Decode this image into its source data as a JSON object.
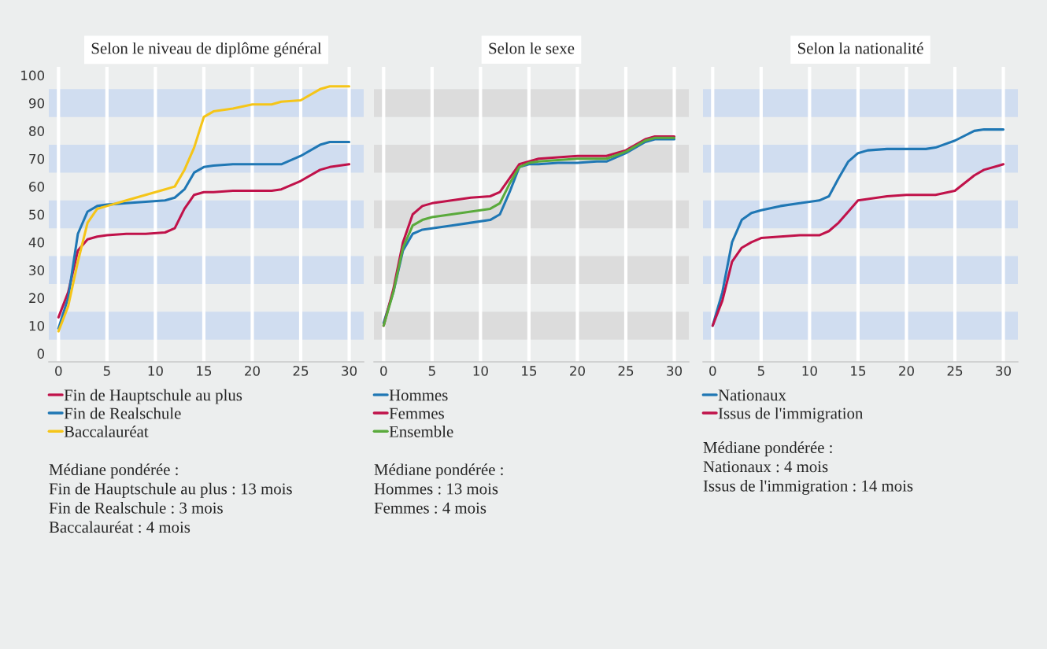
{
  "chart_data": [
    {
      "type": "line",
      "title": "Selon le niveau de diplôme général",
      "x": [
        0,
        1,
        2,
        3,
        4,
        5,
        7,
        9,
        11,
        12,
        13,
        14,
        15,
        16,
        18,
        20,
        22,
        23,
        25,
        27,
        28,
        30
      ],
      "xlim": [
        -1,
        31.5
      ],
      "xticks": [
        0,
        5,
        10,
        15,
        20,
        25,
        30
      ],
      "ylim": [
        -3,
        103
      ],
      "yticks": [
        0,
        10,
        20,
        30,
        40,
        50,
        60,
        70,
        80,
        90,
        100
      ],
      "grid": "x",
      "legend": "bottom",
      "bands": [
        {
          "axis": "y",
          "from": 5,
          "to": 15,
          "color": "#d0ddf0"
        },
        {
          "axis": "y",
          "from": 25,
          "to": 35,
          "color": "#d0ddf0"
        },
        {
          "axis": "y",
          "from": 45,
          "to": 55,
          "color": "#d0ddf0"
        },
        {
          "axis": "y",
          "from": 65,
          "to": 75,
          "color": "#d0ddf0"
        },
        {
          "axis": "y",
          "from": 85,
          "to": 95,
          "color": "#d0ddf0"
        }
      ],
      "series": [
        {
          "name": "Fin de Hauptschule au plus",
          "color": "#c0124a",
          "values": [
            13,
            22,
            37,
            41,
            42,
            42.5,
            43,
            43,
            43.5,
            45,
            52,
            57,
            58,
            58,
            58.5,
            58.5,
            58.5,
            59,
            62,
            66,
            67,
            68
          ]
        },
        {
          "name": "Fin de Realschule",
          "color": "#1f77b4",
          "values": [
            9,
            20,
            43,
            51,
            53,
            53.5,
            54,
            54.5,
            55,
            56,
            59,
            65,
            67,
            67.5,
            68,
            68,
            68,
            68,
            71,
            75,
            76,
            76
          ]
        },
        {
          "name": "Baccalauréat",
          "color": "#f5c518",
          "values": [
            8,
            17,
            33,
            47,
            52,
            53,
            55,
            57,
            59,
            60,
            66,
            74,
            85,
            87,
            88,
            89.5,
            89.5,
            90.5,
            91,
            95,
            96,
            96
          ]
        }
      ],
      "annotations": [
        "Médiane pondérée :",
        "Fin de Hauptschule au plus : 13 mois",
        "Fin de Realschule : 3 mois",
        "Baccalauréat : 4 mois"
      ]
    },
    {
      "type": "line",
      "title": "Selon le sexe",
      "x": [
        0,
        1,
        2,
        3,
        4,
        5,
        7,
        9,
        11,
        12,
        13,
        14,
        15,
        16,
        18,
        20,
        22,
        23,
        25,
        27,
        28,
        30
      ],
      "xlim": [
        -1,
        31.5
      ],
      "xticks": [
        0,
        5,
        10,
        15,
        20,
        25,
        30
      ],
      "ylim": [
        -3,
        103
      ],
      "tick_labels": "x",
      "grid": "x",
      "legend": "bottom",
      "bands": [
        {
          "axis": "y",
          "from": 5,
          "to": 15,
          "color": "#dcdcdc"
        },
        {
          "axis": "y",
          "from": 25,
          "to": 35,
          "color": "#dcdcdc"
        },
        {
          "axis": "y",
          "from": 45,
          "to": 55,
          "color": "#dcdcdc"
        },
        {
          "axis": "y",
          "from": 65,
          "to": 75,
          "color": "#dcdcdc"
        },
        {
          "axis": "y",
          "from": 85,
          "to": 95,
          "color": "#dcdcdc"
        }
      ],
      "series": [
        {
          "name": "Hommes",
          "color": "#1f77b4",
          "values": [
            11,
            22,
            37,
            43,
            44.5,
            45,
            46,
            47,
            48,
            50,
            58,
            67,
            68,
            68,
            68.5,
            68.5,
            69,
            69,
            72,
            76,
            77,
            77
          ]
        },
        {
          "name": "Femmes",
          "color": "#c0124a",
          "values": [
            10,
            23,
            40,
            50,
            53,
            54,
            55,
            56,
            56.5,
            58,
            63,
            68,
            69,
            70,
            70.5,
            71,
            71,
            71,
            73,
            77,
            78,
            78
          ]
        },
        {
          "name": "Ensemble",
          "color": "#5aaa3c",
          "values": [
            10,
            22,
            38,
            46,
            48,
            49,
            50,
            51,
            52,
            54,
            61,
            67,
            68.5,
            69,
            69.5,
            70,
            70,
            70,
            72.5,
            76.5,
            77.5,
            77.5
          ]
        }
      ],
      "annotations": [
        "Médiane pondérée :",
        "Hommes : 13 mois",
        "Femmes : 4 mois"
      ]
    },
    {
      "type": "line",
      "title": "Selon la nationalité",
      "x": [
        0,
        1,
        2,
        3,
        4,
        5,
        7,
        9,
        11,
        12,
        13,
        14,
        15,
        16,
        18,
        20,
        22,
        23,
        25,
        27,
        28,
        30
      ],
      "xlim": [
        -1,
        31.5
      ],
      "xticks": [
        0,
        5,
        10,
        15,
        20,
        25,
        30
      ],
      "ylim": [
        -3,
        103
      ],
      "tick_labels": "x",
      "grid": "x",
      "legend": "bottom",
      "bands": [
        {
          "axis": "y",
          "from": 5,
          "to": 15,
          "color": "#d0ddf0"
        },
        {
          "axis": "y",
          "from": 25,
          "to": 35,
          "color": "#d0ddf0"
        },
        {
          "axis": "y",
          "from": 45,
          "to": 55,
          "color": "#d0ddf0"
        },
        {
          "axis": "y",
          "from": 65,
          "to": 75,
          "color": "#d0ddf0"
        },
        {
          "axis": "y",
          "from": 85,
          "to": 95,
          "color": "#d0ddf0"
        }
      ],
      "series": [
        {
          "name": "Nationaux",
          "color": "#1f77b4",
          "values": [
            10,
            22,
            40,
            48,
            50.5,
            51.5,
            53,
            54,
            55,
            56.5,
            63,
            69,
            72,
            73,
            73.5,
            73.5,
            73.5,
            74,
            76.5,
            80,
            80.5,
            80.5
          ]
        },
        {
          "name": "Issus de l'immigration",
          "color": "#c0124a",
          "values": [
            10,
            19,
            33,
            38,
            40,
            41.5,
            42,
            42.5,
            42.5,
            44,
            47,
            51,
            55,
            55.5,
            56.5,
            57,
            57,
            57,
            58.5,
            64,
            66,
            68
          ]
        }
      ],
      "annotations": [
        "Médiane pondérée :",
        "Nationaux : 4 mois",
        "Issus de l'immigration : 14 mois"
      ]
    }
  ]
}
